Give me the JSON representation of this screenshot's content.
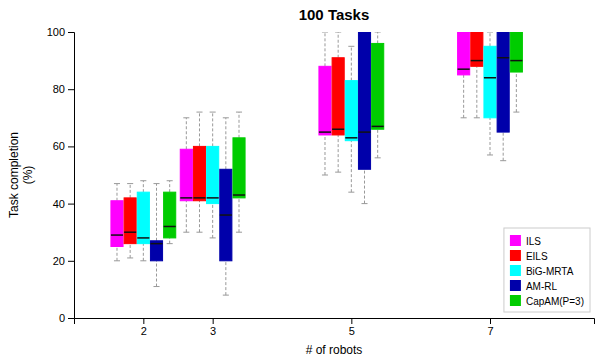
{
  "chart_data": {
    "type": "box",
    "title": "100 Tasks",
    "xlabel": "# of robots",
    "ylabel": "Task completion\n(%)",
    "xlim": [
      1.0,
      8.5
    ],
    "ylim": [
      0,
      100
    ],
    "xticks": [
      2,
      3,
      5,
      7
    ],
    "yticks": [
      0,
      20,
      40,
      60,
      80,
      100
    ],
    "x": [
      2,
      3,
      5,
      7
    ],
    "grid": false,
    "legend": "lower right",
    "series": [
      {
        "name": "ILS",
        "color": "#FF00FF",
        "values": [
          {
            "whislo": 20,
            "q1": 25,
            "med": 29,
            "q3": 41,
            "whishi": 47
          },
          {
            "whislo": 30,
            "q1": 41,
            "med": 42,
            "q3": 59,
            "whishi": 70
          },
          {
            "whislo": 50,
            "q1": 64,
            "med": 65,
            "q3": 88,
            "whishi": 100
          },
          {
            "whislo": 70,
            "q1": 85,
            "med": 87,
            "q3": 100,
            "whishi": 100
          }
        ]
      },
      {
        "name": "EILS",
        "color": "#FF0000",
        "values": [
          {
            "whislo": 21,
            "q1": 26,
            "med": 30,
            "q3": 42,
            "whishi": 47
          },
          {
            "whislo": 30,
            "q1": 41,
            "med": 42,
            "q3": 60,
            "whishi": 72
          },
          {
            "whislo": 51,
            "q1": 64,
            "med": 66,
            "q3": 91,
            "whishi": 100
          },
          {
            "whislo": 70,
            "q1": 88,
            "med": 90,
            "q3": 100,
            "whishi": 100
          }
        ]
      },
      {
        "name": "BiG-MRTA",
        "color": "#00FFFF",
        "values": [
          {
            "whislo": 20,
            "q1": 26,
            "med": 28,
            "q3": 44,
            "whishi": 48
          },
          {
            "whislo": 28,
            "q1": 40,
            "med": 42,
            "q3": 60,
            "whishi": 72
          },
          {
            "whislo": 44,
            "q1": 62,
            "med": 63,
            "q3": 83,
            "whishi": 95
          },
          {
            "whislo": 57,
            "q1": 70,
            "med": 84,
            "q3": 95,
            "whishi": 100
          }
        ]
      },
      {
        "name": "AM-RL",
        "color": "#0000AA",
        "values": [
          {
            "whislo": 11,
            "q1": 20,
            "med": 26,
            "q3": 27,
            "whishi": 47
          },
          {
            "whislo": 8,
            "q1": 20,
            "med": 36,
            "q3": 52,
            "whishi": 70
          },
          {
            "whislo": 40,
            "q1": 52,
            "med": 65,
            "q3": 100,
            "whishi": 100
          },
          {
            "whislo": 55,
            "q1": 65,
            "med": 91,
            "q3": 100,
            "whishi": 100
          }
        ]
      },
      {
        "name": "CapAM(P=3)",
        "color": "#00CC00",
        "values": [
          {
            "whislo": 26,
            "q1": 28,
            "med": 32,
            "q3": 44,
            "whishi": 48
          },
          {
            "whislo": 30,
            "q1": 42,
            "med": 43,
            "q3": 63,
            "whishi": 72
          },
          {
            "whislo": 56,
            "q1": 66,
            "med": 67,
            "q3": 96,
            "whishi": 100
          },
          {
            "whislo": 72,
            "q1": 86,
            "med": 90,
            "q3": 100,
            "whishi": 100
          }
        ]
      }
    ]
  }
}
